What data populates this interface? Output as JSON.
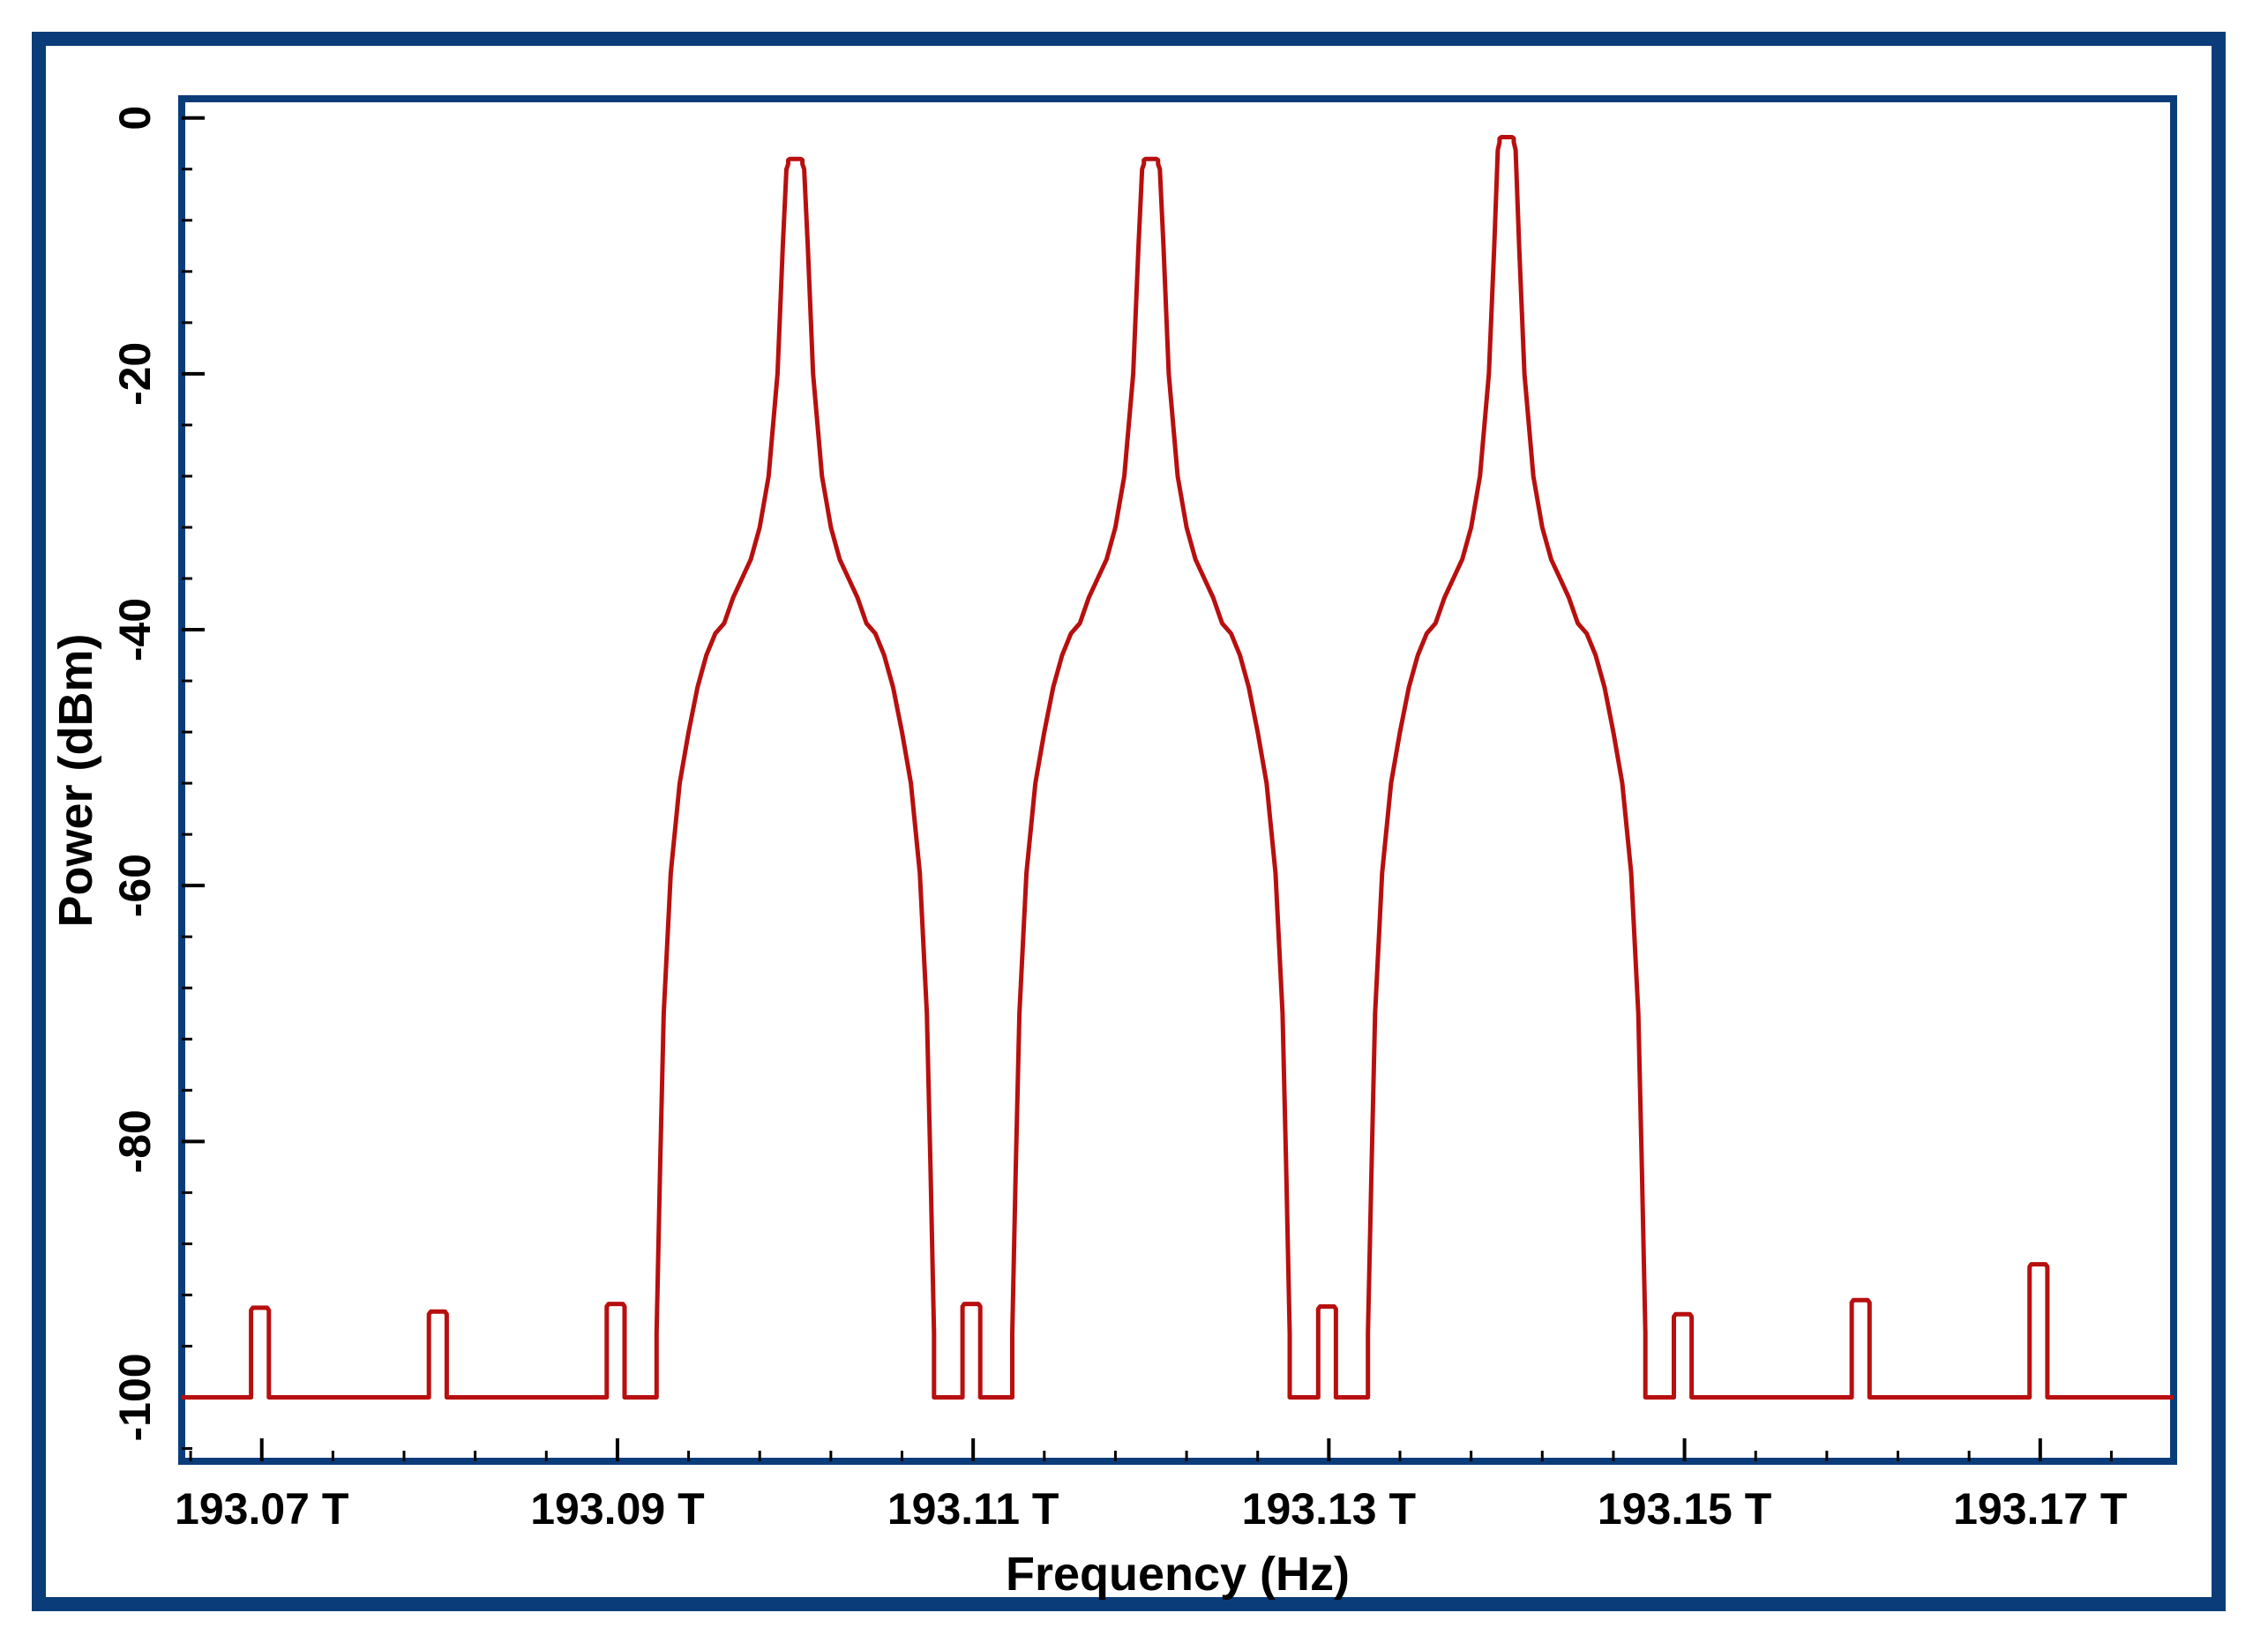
{
  "chart_data": {
    "type": "line",
    "title": "",
    "xlabel": "Frequency (Hz)",
    "ylabel": "Power (dBm)",
    "xlim": [
      193.0655,
      193.1775
    ],
    "ylim": [
      -105,
      1.5
    ],
    "x_ticks": [
      193.07,
      193.09,
      193.11,
      193.13,
      193.15,
      193.17
    ],
    "x_tick_labels": [
      "193.07 T",
      "193.09 T",
      "193.11 T",
      "193.13 T",
      "193.15 T",
      "193.17 T"
    ],
    "y_ticks": [
      0,
      -20,
      -40,
      -60,
      -80,
      -100
    ],
    "y_tick_labels": [
      "0",
      "-20",
      "-40",
      "-60",
      "-80",
      "-100"
    ],
    "grid": false,
    "colors": {
      "series": "#b80f0f",
      "frame": "#0b3c7a",
      "axis": "#000000"
    },
    "series": [
      {
        "x": [
          193.0655,
          193.0694,
          193.0694,
          193.0695,
          193.0703,
          193.0704,
          193.0704,
          193.0794,
          193.0794,
          193.0795,
          193.0803,
          193.0804,
          193.0804,
          193.0894,
          193.0894,
          193.0895,
          193.0903,
          193.0904,
          193.0904,
          193.0922,
          193.0922,
          193.0924,
          193.0926,
          193.093,
          193.0935,
          193.094,
          193.0945,
          193.095,
          193.0955,
          193.096,
          193.0965,
          193.097,
          193.0975,
          193.098,
          193.0985,
          193.099,
          193.0993,
          193.0995,
          193.0996,
          193.0996,
          193.0997,
          193.1003,
          193.1004,
          193.1004,
          193.1005,
          193.1007,
          193.101,
          193.1015,
          193.102,
          193.1025,
          193.103,
          193.1035,
          193.104,
          193.1045,
          193.105,
          193.1055,
          193.106,
          193.1065,
          193.107,
          193.1074,
          193.1076,
          193.1078,
          193.1078,
          193.1094,
          193.1094,
          193.1095,
          193.1103,
          193.1104,
          193.1104,
          193.1122,
          193.1122,
          193.1124,
          193.1126,
          193.113,
          193.1135,
          193.114,
          193.1145,
          193.115,
          193.1155,
          193.116,
          193.1165,
          193.117,
          193.1175,
          193.118,
          193.1185,
          193.119,
          193.1193,
          193.1195,
          193.1196,
          193.1196,
          193.1197,
          193.1203,
          193.1204,
          193.1204,
          193.1205,
          193.1207,
          193.121,
          193.1215,
          193.122,
          193.1225,
          193.123,
          193.1235,
          193.124,
          193.1245,
          193.125,
          193.1255,
          193.126,
          193.1265,
          193.127,
          193.1274,
          193.1276,
          193.1278,
          193.1278,
          193.1294,
          193.1294,
          193.1295,
          193.1303,
          193.1304,
          193.1304,
          193.1322,
          193.1322,
          193.1324,
          193.1326,
          193.133,
          193.1335,
          193.134,
          193.1345,
          193.135,
          193.1355,
          193.136,
          193.1365,
          193.137,
          193.1375,
          193.138,
          193.1385,
          193.139,
          193.1393,
          193.1395,
          193.1396,
          193.1396,
          193.1397,
          193.1403,
          193.1404,
          193.1404,
          193.1405,
          193.1407,
          193.141,
          193.1415,
          193.142,
          193.1425,
          193.143,
          193.1435,
          193.144,
          193.1445,
          193.145,
          193.1455,
          193.146,
          193.1465,
          193.147,
          193.1474,
          193.1476,
          193.1478,
          193.1478,
          193.1494,
          193.1494,
          193.1495,
          193.1503,
          193.1504,
          193.1504,
          193.1594,
          193.1594,
          193.1595,
          193.1603,
          193.1604,
          193.1604,
          193.1694,
          193.1694,
          193.1695,
          193.1703,
          193.1704,
          193.1704,
          193.1775
        ],
        "y": [
          -100,
          -100,
          -93.2,
          -93,
          -93,
          -93.2,
          -100,
          -100,
          -93.5,
          -93.3,
          -93.3,
          -93.5,
          -100,
          -100,
          -92.9,
          -92.7,
          -92.7,
          -92.9,
          -100,
          -100,
          -95,
          -82,
          -70,
          -59,
          -52,
          -48,
          -44.5,
          -42,
          -40.3,
          -39.5,
          -37.5,
          -36,
          -34.5,
          -32,
          -28,
          -20,
          -10,
          -4,
          -3.6,
          -3.3,
          -3.2,
          -3.2,
          -3.3,
          -3.6,
          -4,
          -10,
          -20,
          -28,
          -32,
          -34.5,
          -36,
          -37.5,
          -39.5,
          -40.3,
          -42,
          -44.5,
          -48,
          -52,
          -59,
          -70,
          -82,
          -95,
          -100,
          -100,
          -92.9,
          -92.7,
          -92.7,
          -92.9,
          -100,
          -100,
          -95,
          -82,
          -70,
          -59,
          -52,
          -48,
          -44.5,
          -42,
          -40.3,
          -39.5,
          -37.5,
          -36,
          -34.5,
          -32,
          -28,
          -20,
          -10,
          -4,
          -3.6,
          -3.3,
          -3.2,
          -3.2,
          -3.3,
          -3.6,
          -4,
          -10,
          -20,
          -28,
          -32,
          -34.5,
          -36,
          -37.5,
          -39.5,
          -40.3,
          -42,
          -44.5,
          -48,
          -52,
          -59,
          -70,
          -82,
          -95,
          -100,
          -100,
          -93.1,
          -92.9,
          -92.9,
          -93.1,
          -100,
          -100,
          -95,
          -82,
          -70,
          -59,
          -52,
          -48,
          -44.5,
          -42,
          -40.3,
          -39.5,
          -37.5,
          -36,
          -34.5,
          -32,
          -28,
          -20,
          -10,
          -2.5,
          -1.9,
          -1.6,
          -1.5,
          -1.5,
          -1.6,
          -1.9,
          -2.5,
          -10,
          -20,
          -28,
          -32,
          -34.5,
          -36,
          -37.5,
          -39.5,
          -40.3,
          -42,
          -44.5,
          -48,
          -52,
          -59,
          -70,
          -82,
          -95,
          -100,
          -100,
          -93.7,
          -93.5,
          -93.5,
          -93.7,
          -100,
          -100,
          -92.6,
          -92.4,
          -92.4,
          -92.6,
          -100,
          -100,
          -89.8,
          -89.6,
          -89.6,
          -89.8,
          -100,
          -100
        ]
      }
    ]
  }
}
